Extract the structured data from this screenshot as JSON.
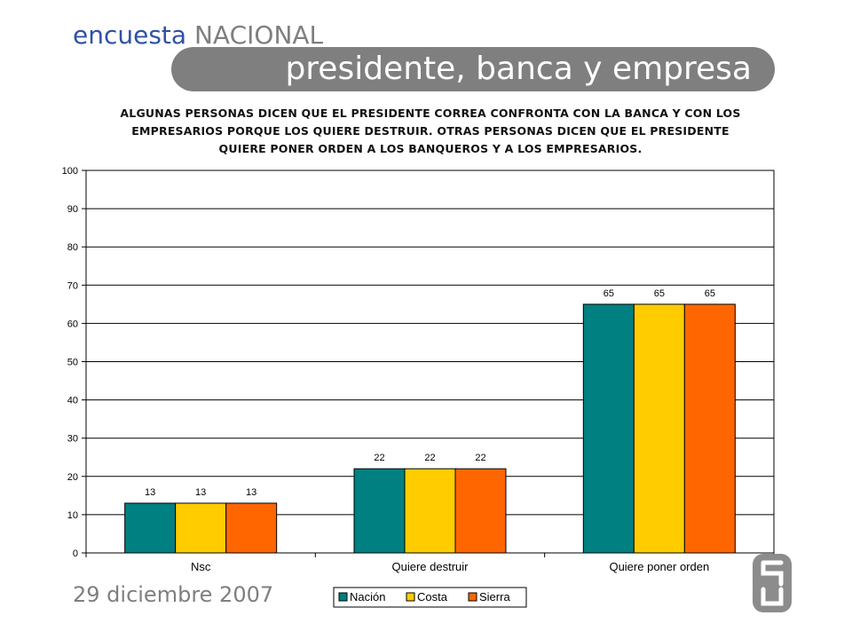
{
  "header": {
    "brand_part1": "encuesta",
    "brand_part2": "NACIONAL",
    "title": "presidente, banca y empresa"
  },
  "question": {
    "line1": "ALGUNAS PERSONAS DICEN QUE EL PRESIDENTE CORREA CONFRONTA CON LA BANCA Y CON LOS",
    "line2": "EMPRESARIOS PORQUE LOS QUIERE DESTRUIR. OTRAS PERSONAS DICEN QUE EL PRESIDENTE",
    "line3": "QUIERE PONER ORDEN A LOS BANQUEROS Y A LOS EMPRESARIOS."
  },
  "footer": {
    "date": "29 diciembre 2007",
    "logo_icon": "company-logo-icon"
  },
  "colors": {
    "brand_blue": "#2f52a6",
    "gray": "#7f7f7f"
  },
  "chart_data": {
    "type": "bar",
    "categories": [
      "Nsc",
      "Quiere destruir",
      "Quiere poner orden"
    ],
    "series": [
      {
        "name": "Nación",
        "values": [
          13,
          22,
          65
        ],
        "color": "#008080"
      },
      {
        "name": "Costa",
        "values": [
          13,
          22,
          65
        ],
        "color": "#ffcc00"
      },
      {
        "name": "Sierra",
        "values": [
          13,
          22,
          65
        ],
        "color": "#ff6600"
      }
    ],
    "ylim": [
      0,
      100
    ],
    "yticks": [
      0,
      10,
      20,
      30,
      40,
      50,
      60,
      70,
      80,
      90,
      100
    ],
    "grid": true,
    "data_labels": true,
    "legend": "bottom"
  }
}
